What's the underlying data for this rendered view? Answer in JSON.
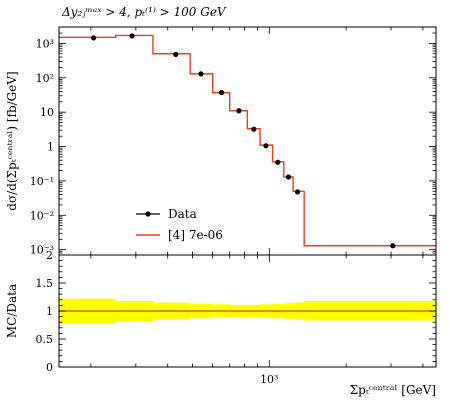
{
  "title_text": "Δy₂ⱼᵐᵃˣ > 4, pₜ⁽¹⁾ > 100 GeV",
  "chart_data": [
    {
      "type": "line",
      "panel": "main",
      "xscale": "log",
      "yscale": "log",
      "xlim": [
        150,
        4500
      ],
      "ylim": [
        0.0007,
        3000
      ],
      "ylabel": "dσ/d(Σpₜᶜᵉⁿᵗʳᵃˡ) [fb/GeV]",
      "yticks": [
        {
          "v": 0.001,
          "label": "10⁻³"
        },
        {
          "v": 0.01,
          "label": "10⁻²"
        },
        {
          "v": 0.1,
          "label": "10⁻¹"
        },
        {
          "v": 1,
          "label": "1"
        },
        {
          "v": 10,
          "label": "10"
        },
        {
          "v": 100,
          "label": "10²"
        },
        {
          "v": 1000,
          "label": "10³"
        }
      ],
      "legend": {
        "placement": "lower-left"
      },
      "series": [
        {
          "name": "Data",
          "style": "points",
          "color": "#000000",
          "x": [
            205,
            290,
            430,
            540,
            650,
            760,
            870,
            970,
            1080,
            1190,
            1290,
            3050
          ],
          "y": [
            1450,
            1650,
            480,
            130,
            37,
            11,
            3.2,
            1.05,
            0.35,
            0.13,
            0.048,
            0.0013
          ]
        },
        {
          "name": "[4] 7e-06",
          "style": "step",
          "color": "#e8401c",
          "edges": [
            150,
            250,
            350,
            490,
            600,
            700,
            820,
            920,
            1030,
            1140,
            1240,
            1370,
            4500
          ],
          "values": [
            1500,
            1700,
            500,
            130,
            37,
            11,
            3.3,
            1.1,
            0.36,
            0.13,
            0.05,
            0.0013
          ]
        }
      ]
    },
    {
      "type": "area",
      "panel": "ratio",
      "xscale": "log",
      "xlim": [
        150,
        4500
      ],
      "ylim": [
        0,
        2
      ],
      "ylabel": "MC/Data",
      "xlabel": "Σpₜᶜᵉⁿᵗʳᵃˡ [GeV]",
      "xticks": [
        {
          "v": 1000,
          "label": "10³"
        }
      ],
      "yticks": [
        {
          "v": 0,
          "label": "0"
        },
        {
          "v": 0.5,
          "label": "0.5"
        },
        {
          "v": 1,
          "label": "1"
        },
        {
          "v": 1.5,
          "label": "1.5"
        },
        {
          "v": 2,
          "label": "2"
        }
      ],
      "band_color": "#ffff00",
      "edges": [
        150,
        250,
        350,
        490,
        600,
        700,
        820,
        920,
        1030,
        1140,
        1240,
        1370,
        4500
      ],
      "band_low": [
        0.78,
        0.82,
        0.85,
        0.87,
        0.88,
        0.89,
        0.89,
        0.88,
        0.87,
        0.86,
        0.85,
        0.83
      ],
      "band_high": [
        1.22,
        1.18,
        1.15,
        1.13,
        1.12,
        1.11,
        1.11,
        1.12,
        1.13,
        1.14,
        1.15,
        1.18
      ],
      "ratio_values": [
        1.0,
        1.0,
        1.0,
        1.0,
        1.0,
        1.0,
        1.0,
        1.0,
        1.0,
        1.0,
        1.0,
        1.0
      ],
      "ratio_color": "#e8401c"
    }
  ]
}
